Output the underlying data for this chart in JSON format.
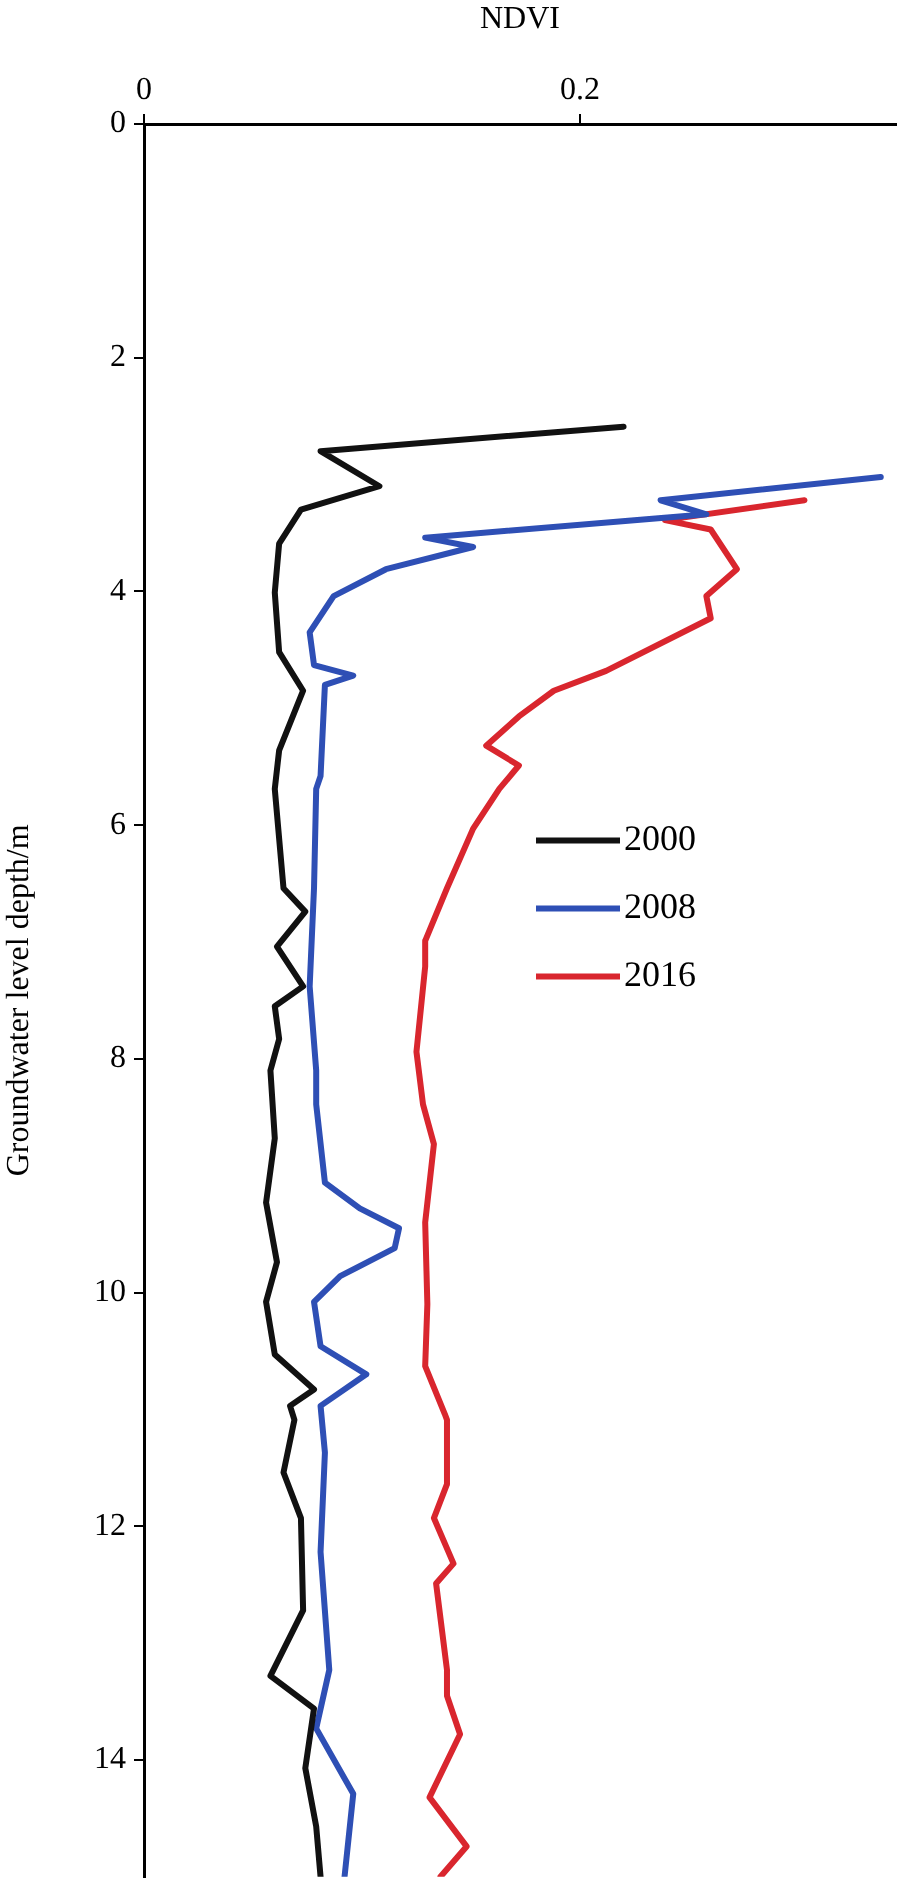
{
  "chart_data": {
    "type": "line",
    "xlabel": "NDVI",
    "ylabel": "Groundwater level depth/m",
    "xlim": [
      0,
      0.345
    ],
    "xticks": [
      0,
      0.2
    ],
    "ylim": [
      15,
      0
    ],
    "yticks": [
      0,
      2,
      4,
      6,
      8,
      10,
      12,
      14
    ],
    "grid": false,
    "legend": "right",
    "marker": "none",
    "line_style": "solid",
    "series": [
      {
        "name": "2000",
        "color": "#111111",
        "x": [
          0.22,
          0.081,
          0.108,
          0.072,
          0.062,
          0.06,
          0.062,
          0.073,
          0.062,
          0.06,
          0.064,
          0.074,
          0.061,
          0.073,
          0.06,
          0.062,
          0.058,
          0.06,
          0.056,
          0.061,
          0.056,
          0.06,
          0.078,
          0.067,
          0.069,
          0.064,
          0.072,
          0.073,
          0.058,
          0.078,
          0.074,
          0.079,
          0.081
        ],
        "values": [
          2.59,
          2.8,
          3.1,
          3.3,
          3.59,
          4.01,
          4.52,
          4.85,
          5.36,
          5.69,
          6.54,
          6.74,
          7.04,
          7.38,
          7.55,
          7.83,
          8.1,
          8.68,
          9.23,
          9.74,
          10.08,
          10.53,
          10.83,
          10.97,
          11.09,
          11.54,
          11.93,
          12.72,
          13.28,
          13.56,
          14.07,
          14.57,
          15.0
        ]
      },
      {
        "name": "2008",
        "color": "#2e4fb5",
        "x": [
          0.338,
          0.237,
          0.258,
          0.129,
          0.151,
          0.111,
          0.087,
          0.076,
          0.078,
          0.096,
          0.083,
          0.081,
          0.079,
          0.078,
          0.076,
          0.079,
          0.079,
          0.083,
          0.099,
          0.117,
          0.115,
          0.09,
          0.078,
          0.081,
          0.102,
          0.081,
          0.083,
          0.081,
          0.085,
          0.079,
          0.096,
          0.092
        ],
        "values": [
          3.02,
          3.22,
          3.34,
          3.54,
          3.62,
          3.81,
          4.04,
          4.35,
          4.63,
          4.72,
          4.8,
          5.58,
          5.69,
          6.54,
          7.38,
          8.1,
          8.39,
          9.06,
          9.28,
          9.45,
          9.62,
          9.86,
          10.08,
          10.46,
          10.7,
          10.97,
          11.37,
          12.22,
          13.23,
          13.73,
          14.29,
          15.0
        ]
      },
      {
        "name": "2016",
        "color": "#d9262e",
        "x": [
          0.303,
          0.239,
          0.26,
          0.272,
          0.258,
          0.26,
          0.212,
          0.188,
          0.172,
          0.157,
          0.172,
          0.163,
          0.151,
          0.139,
          0.129,
          0.129,
          0.125,
          0.128,
          0.133,
          0.129,
          0.13,
          0.129,
          0.138,
          0.139,
          0.139,
          0.133,
          0.142,
          0.134,
          0.139,
          0.139,
          0.145,
          0.131,
          0.148,
          0.136
        ],
        "values": [
          3.22,
          3.39,
          3.47,
          3.81,
          4.04,
          4.23,
          4.68,
          4.85,
          5.07,
          5.32,
          5.49,
          5.69,
          6.03,
          6.54,
          6.99,
          7.21,
          7.94,
          8.39,
          8.73,
          9.4,
          10.1,
          10.63,
          11.04,
          11.09,
          11.64,
          11.93,
          12.32,
          12.49,
          13.23,
          13.45,
          13.78,
          14.32,
          14.74,
          15.0
        ]
      }
    ]
  }
}
